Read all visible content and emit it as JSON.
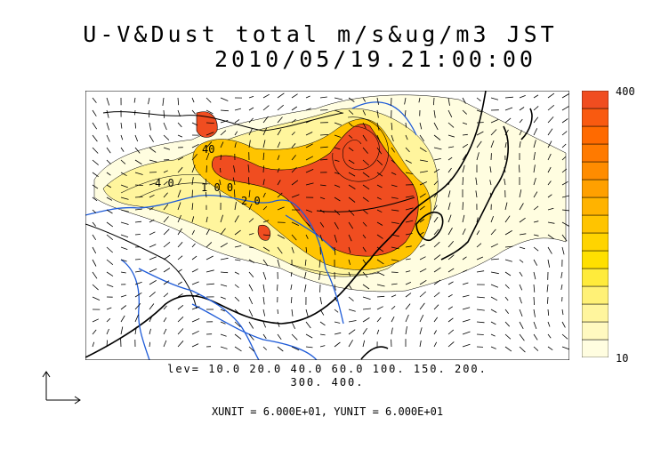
{
  "title": {
    "line1": "U-V&Dust total m/s&ug/m3 JST",
    "line2": "2010/05/19.21:00:00"
  },
  "colorbar": {
    "max_label": "400",
    "min_label": "10",
    "colors": [
      "#fffde0",
      "#fff9c0",
      "#fff59d",
      "#fff176",
      "#ffeb3b",
      "#ffe000",
      "#ffd400",
      "#ffc400",
      "#ffb300",
      "#ffa000",
      "#ff8c00",
      "#ff7a00",
      "#ff6a00",
      "#f95a10",
      "#f04d20"
    ]
  },
  "contour_labels": {
    "a": "40",
    "b": "4 0",
    "c": "2 0",
    "d": "1 0 0"
  },
  "levels": {
    "line1": "lev= 10.0 20.0 40.0 60.0 100. 150. 200.",
    "line2": "300. 400."
  },
  "units": "XUNIT = 6.000E+01, YUNIT = 6.000E+01",
  "map_colors": {
    "river": "#1e5bd8",
    "coast": "#000000",
    "dust_high": "#f04d20",
    "dust_mid": "#ffb300",
    "dust_low": "#fff59d",
    "dust_faint": "#fffde0"
  }
}
